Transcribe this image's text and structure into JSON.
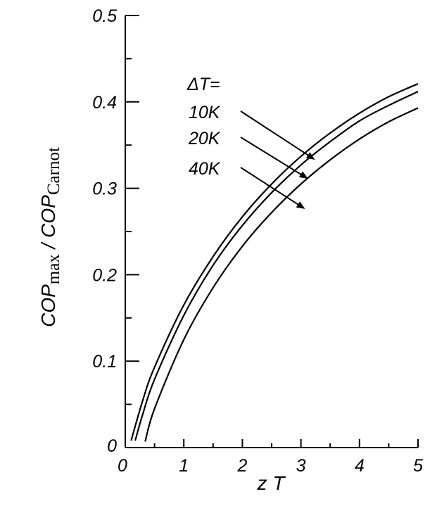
{
  "chart_data": {
    "type": "line",
    "xlabel": {
      "main": "z T"
    },
    "ylabel": {
      "part1": "COP",
      "sub1": "max",
      "sep": " / ",
      "part2": "COP",
      "sub2": "Carnot"
    },
    "xlim": [
      0,
      5
    ],
    "ylim": [
      0,
      0.5
    ],
    "x_ticks": [
      "0",
      "1",
      "2",
      "3",
      "4",
      "5"
    ],
    "y_ticks": [
      "0",
      "0.1",
      "0.2",
      "0.3",
      "0.4",
      "0.5"
    ],
    "grid": false,
    "annotation_header": "ΔT=",
    "series": [
      {
        "name": "10K",
        "x": [
          0.1,
          0.3,
          0.5,
          1,
          1.5,
          2,
          2.5,
          3,
          3.5,
          4,
          4.5,
          5
        ],
        "y": [
          0.008,
          0.055,
          0.093,
          0.165,
          0.221,
          0.267,
          0.305,
          0.337,
          0.364,
          0.387,
          0.406,
          0.421
        ]
      },
      {
        "name": "20K",
        "x": [
          0.17,
          0.3,
          0.5,
          1,
          1.5,
          2,
          2.5,
          3,
          3.5,
          4,
          4.5,
          5
        ],
        "y": [
          0.008,
          0.039,
          0.079,
          0.153,
          0.211,
          0.257,
          0.295,
          0.327,
          0.354,
          0.378,
          0.396,
          0.412
        ]
      },
      {
        "name": "40K",
        "x": [
          0.34,
          0.5,
          1,
          1.5,
          2,
          2.5,
          3,
          3.5,
          4,
          4.5,
          5
        ],
        "y": [
          0.007,
          0.045,
          0.125,
          0.185,
          0.233,
          0.272,
          0.305,
          0.333,
          0.357,
          0.377,
          0.393
        ]
      }
    ],
    "annotations": [
      {
        "label": "10K",
        "arrow_to": [
          3.22,
          0.334
        ]
      },
      {
        "label": "20K",
        "arrow_to": [
          3.1,
          0.312
        ]
      },
      {
        "label": "40K",
        "arrow_to": [
          3.05,
          0.277
        ]
      }
    ]
  }
}
